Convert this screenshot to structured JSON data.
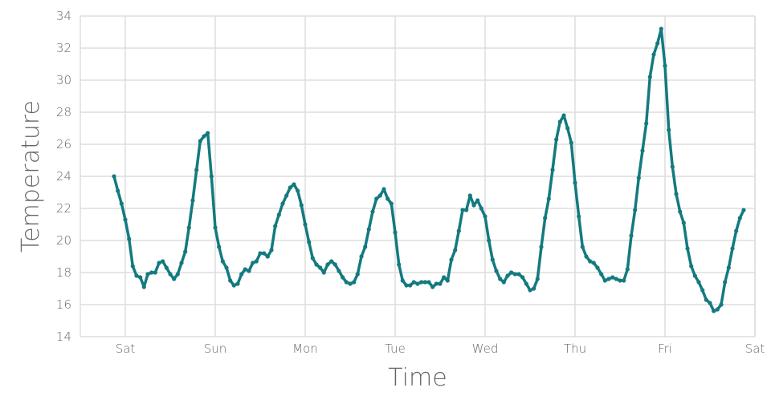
{
  "chart_data": {
    "type": "line",
    "title": "",
    "xlabel": "Time",
    "ylabel": "Temperature",
    "ylim": [
      14,
      34
    ],
    "y_ticks": [
      "14",
      "16",
      "18",
      "20",
      "22",
      "24",
      "26",
      "28",
      "30",
      "32",
      "34"
    ],
    "x_ticks": [
      "Sat",
      "Sun",
      "Mon",
      "Tue",
      "Wed",
      "Thu",
      "Fri",
      "Sat"
    ],
    "x_start": "Fri 21:00",
    "x_interval_hours": 1,
    "grid": true,
    "line_color": "#137a7f",
    "grid_color": "#dddddd",
    "values": [
      24.0,
      23.1,
      22.3,
      21.3,
      20.1,
      18.4,
      17.8,
      17.7,
      17.1,
      17.9,
      18.0,
      18.0,
      18.6,
      18.7,
      18.3,
      17.9,
      17.6,
      17.9,
      18.6,
      19.3,
      20.8,
      22.5,
      24.4,
      26.2,
      26.5,
      26.7,
      24.0,
      20.8,
      19.6,
      18.7,
      18.3,
      17.5,
      17.2,
      17.3,
      17.9,
      18.2,
      18.1,
      18.6,
      18.7,
      19.2,
      19.2,
      19.0,
      19.4,
      20.9,
      21.6,
      22.3,
      22.8,
      23.3,
      23.5,
      23.1,
      22.2,
      21.0,
      19.9,
      18.9,
      18.5,
      18.3,
      18.0,
      18.5,
      18.7,
      18.5,
      18.1,
      17.7,
      17.4,
      17.3,
      17.4,
      17.9,
      19.0,
      19.6,
      20.7,
      21.8,
      22.6,
      22.8,
      23.2,
      22.6,
      22.3,
      20.5,
      18.5,
      17.5,
      17.2,
      17.2,
      17.4,
      17.3,
      17.4,
      17.4,
      17.4,
      17.1,
      17.3,
      17.3,
      17.7,
      17.5,
      18.8,
      19.4,
      20.6,
      21.9,
      21.9,
      22.8,
      22.2,
      22.5,
      22.0,
      21.5,
      20.0,
      18.8,
      18.1,
      17.6,
      17.4,
      17.8,
      18.0,
      17.9,
      17.9,
      17.7,
      17.3,
      16.9,
      17.0,
      17.6,
      19.6,
      21.4,
      22.6,
      24.4,
      26.3,
      27.4,
      27.8,
      27.0,
      26.1,
      23.6,
      21.5,
      19.6,
      19.0,
      18.7,
      18.6,
      18.3,
      17.9,
      17.5,
      17.6,
      17.7,
      17.6,
      17.5,
      17.5,
      18.2,
      20.3,
      21.9,
      23.9,
      25.6,
      27.3,
      30.2,
      31.6,
      32.3,
      33.2,
      30.9,
      26.9,
      24.6,
      22.9,
      21.8,
      21.1,
      19.5,
      18.4,
      17.8,
      17.4,
      16.9,
      16.3,
      16.1,
      15.6,
      15.7,
      16.0,
      17.4,
      18.3,
      19.5,
      20.6,
      21.4,
      21.9
    ]
  }
}
